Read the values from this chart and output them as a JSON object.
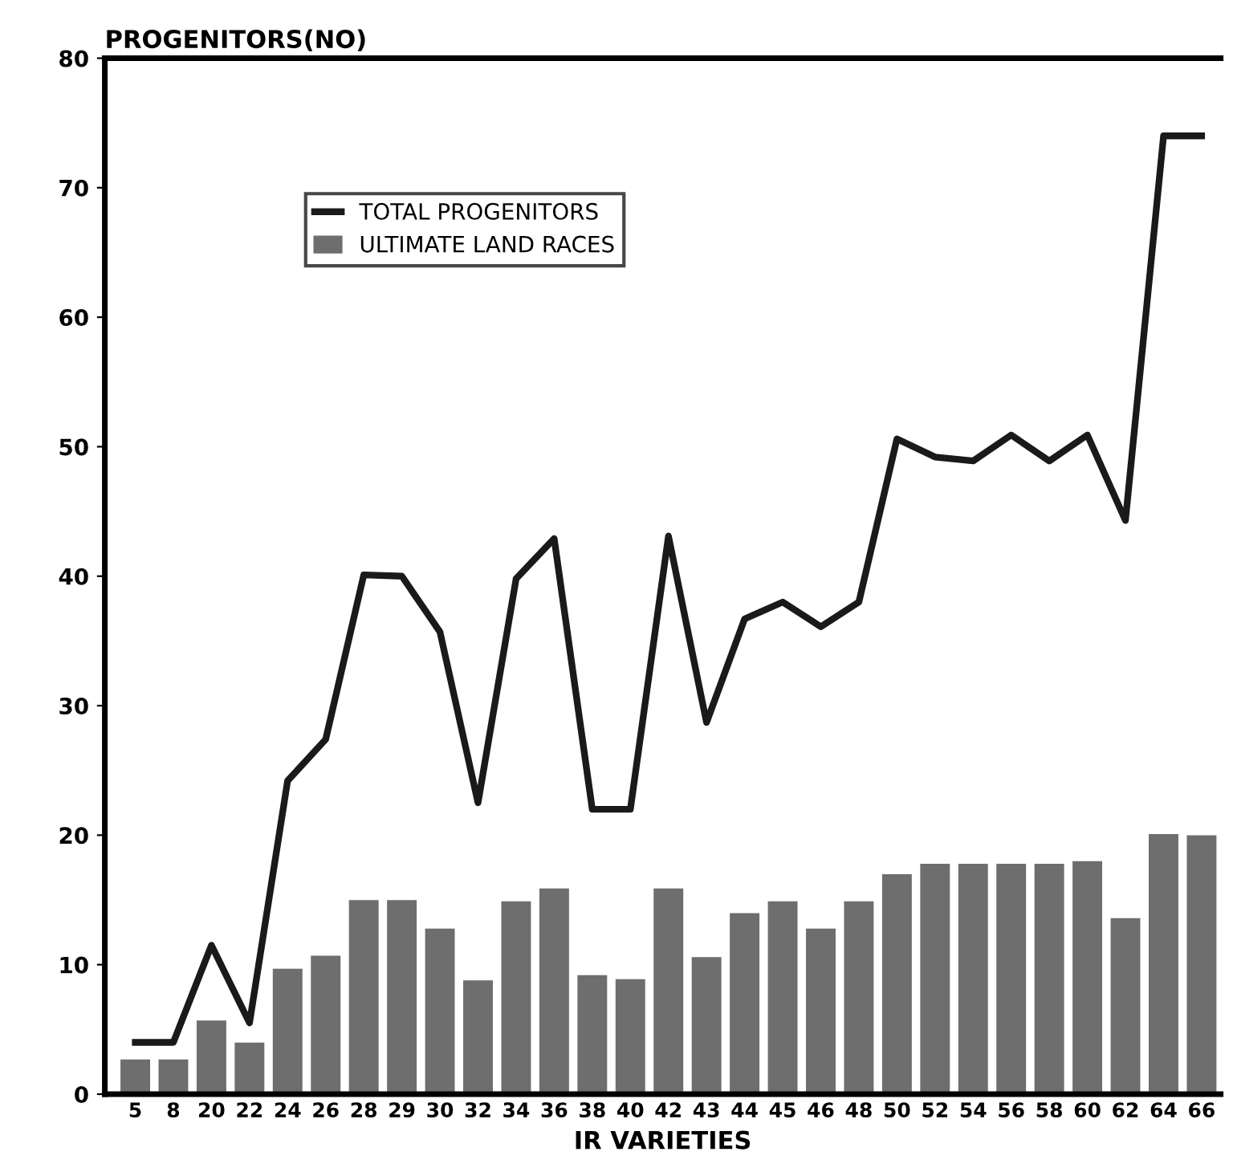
{
  "chart_data": {
    "type": "bar",
    "ylabel": "PROGENITORS(NO)",
    "xlabel": "IR VARIETIES",
    "categories": [
      "5",
      "8",
      "20",
      "22",
      "24",
      "26",
      "28",
      "29",
      "30",
      "32",
      "34",
      "36",
      "38",
      "40",
      "42",
      "43",
      "44",
      "45",
      "46",
      "48",
      "50",
      "52",
      "54",
      "56",
      "58",
      "60",
      "62",
      "64",
      "66"
    ],
    "series": [
      {
        "name": "TOTAL PROGENITORS",
        "type": "line",
        "color": "#1a1a1a",
        "values": [
          4.0,
          4.0,
          11.5,
          5.5,
          24.2,
          27.4,
          40.1,
          40.0,
          35.7,
          22.5,
          39.8,
          42.9,
          22.0,
          22.0,
          43.1,
          28.7,
          36.7,
          38.0,
          36.1,
          38.0,
          50.6,
          49.2,
          48.9,
          50.9,
          48.9,
          50.9,
          44.3,
          74.0,
          74.0
        ]
      },
      {
        "name": "ULTIMATE LAND RACES",
        "color": "#6e6e6e",
        "values": [
          2.6,
          2.6,
          5.6,
          3.9,
          9.6,
          10.6,
          14.9,
          14.9,
          12.7,
          8.7,
          14.8,
          15.8,
          9.1,
          8.8,
          15.8,
          10.5,
          13.9,
          14.8,
          12.7,
          14.8,
          16.9,
          17.7,
          17.7,
          17.7,
          17.7,
          17.9,
          13.5,
          20.0,
          19.9
        ]
      }
    ],
    "ylim": [
      0,
      80
    ],
    "yticks": [
      0,
      10,
      20,
      30,
      40,
      50,
      60,
      70,
      80
    ],
    "grid": false,
    "legend": "top left",
    "marker": "none",
    "line_style": "solid"
  }
}
